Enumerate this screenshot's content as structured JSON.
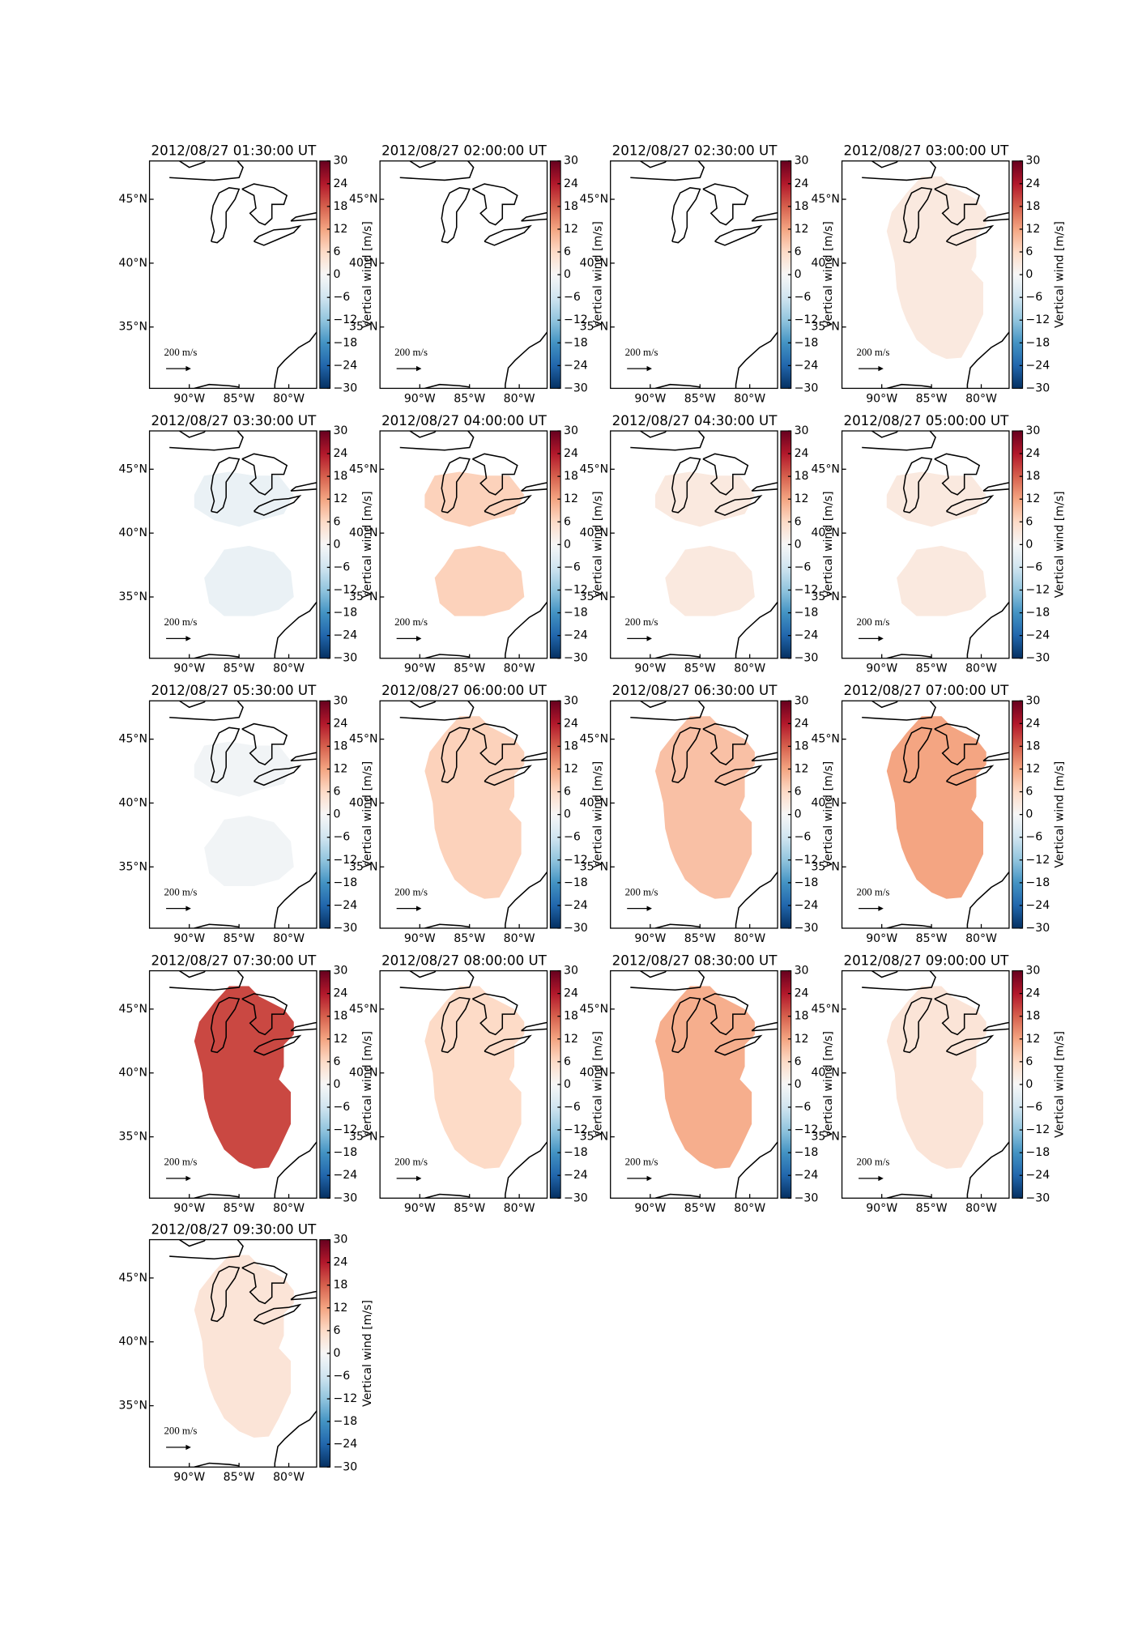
{
  "chart_data": {
    "type": "map",
    "xlim": [
      -94,
      -77.2
    ],
    "ylim": [
      30.2,
      48
    ],
    "xticks": [
      {
        "value": -90,
        "label": "90°W"
      },
      {
        "value": -85,
        "label": "85°W"
      },
      {
        "value": -80,
        "label": "80°W"
      }
    ],
    "yticks": [
      {
        "value": 35,
        "label": "35°N"
      },
      {
        "value": 40,
        "label": "40°N"
      },
      {
        "value": 45,
        "label": "45°N"
      }
    ],
    "clim": [
      -30,
      30
    ],
    "cticks": [
      {
        "value": -30,
        "label": "−30"
      },
      {
        "value": -24,
        "label": "−24"
      },
      {
        "value": -18,
        "label": "−18"
      },
      {
        "value": -12,
        "label": "−12"
      },
      {
        "value": -6,
        "label": "−6"
      },
      0,
      6,
      12,
      18,
      24,
      30
    ],
    "colorbar_label": "Vertical wind [m/s]",
    "reference_label": "200 m/s",
    "panels": [
      {
        "title": "2012/08/27 01:30:00 UT",
        "value": null
      },
      {
        "title": "2012/08/27 02:00:00 UT",
        "value": null
      },
      {
        "title": "2012/08/27 02:30:00 UT",
        "value": null
      },
      {
        "title": "2012/08/27 03:00:00 UT",
        "value": 3
      },
      {
        "title": "2012/08/27 03:30:00 UT",
        "value": -2
      },
      {
        "title": "2012/08/27 04:00:00 UT",
        "value": 7
      },
      {
        "title": "2012/08/27 04:30:00 UT",
        "value": 3
      },
      {
        "title": "2012/08/27 05:00:00 UT",
        "value": 3
      },
      {
        "title": "2012/08/27 05:30:00 UT",
        "value": -1
      },
      {
        "title": "2012/08/27 06:00:00 UT",
        "value": 7
      },
      {
        "title": "2012/08/27 06:30:00 UT",
        "value": 9
      },
      {
        "title": "2012/08/27 07:00:00 UT",
        "value": 12
      },
      {
        "title": "2012/08/27 07:30:00 UT",
        "value": 20
      },
      {
        "title": "2012/08/27 08:00:00 UT",
        "value": 6
      },
      {
        "title": "2012/08/27 08:30:00 UT",
        "value": 11
      },
      {
        "title": "2012/08/27 09:00:00 UT",
        "value": 4
      },
      {
        "title": "2012/08/27 09:30:00 UT",
        "value": 4
      }
    ]
  }
}
